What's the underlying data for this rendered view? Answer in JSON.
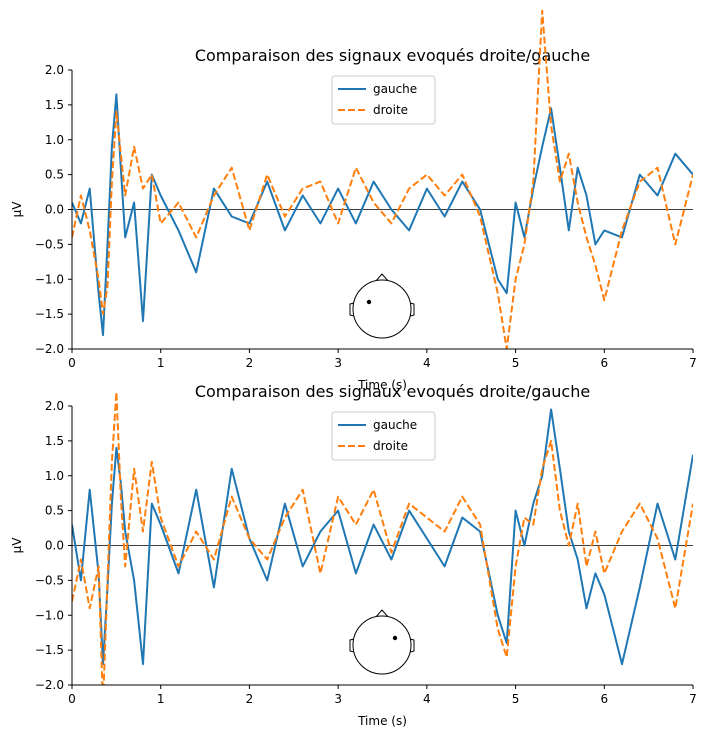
{
  "chart_data": [
    {
      "type": "line",
      "title": "Comparaison des signaux evoqués droite/gauche",
      "xlabel": "Time (s)",
      "ylabel": "µV",
      "xlim": [
        0,
        7
      ],
      "ylim": [
        -2.0,
        2.0
      ],
      "xticks": [
        "0",
        "1",
        "2",
        "3",
        "4",
        "5",
        "6",
        "7"
      ],
      "yticks": [
        "−2.0",
        "−1.5",
        "−1.0",
        "−0.5",
        "0.0",
        "0.5",
        "1.0",
        "1.5",
        "2.0"
      ],
      "legend": "top-center",
      "zero_line": true,
      "sensor_inset": {
        "sensor_side": "left"
      },
      "series": [
        {
          "name": "gauche",
          "color": "#1f77b4",
          "dash": "solid",
          "x": [
            0,
            0.1,
            0.2,
            0.3,
            0.35,
            0.4,
            0.45,
            0.5,
            0.55,
            0.6,
            0.7,
            0.8,
            0.9,
            1.0,
            1.2,
            1.4,
            1.6,
            1.8,
            2.0,
            2.2,
            2.4,
            2.6,
            2.8,
            3.0,
            3.2,
            3.4,
            3.6,
            3.8,
            4.0,
            4.2,
            4.4,
            4.6,
            4.8,
            4.9,
            5.0,
            5.1,
            5.2,
            5.3,
            5.4,
            5.5,
            5.6,
            5.7,
            5.8,
            5.9,
            6.0,
            6.2,
            6.4,
            6.6,
            6.8,
            7.0
          ],
          "y": [
            0.1,
            -0.2,
            0.3,
            -1.2,
            -1.8,
            -0.5,
            0.9,
            1.65,
            0.6,
            -0.4,
            0.1,
            -1.6,
            0.5,
            0.2,
            -0.3,
            -0.9,
            0.3,
            -0.1,
            -0.2,
            0.4,
            -0.3,
            0.2,
            -0.2,
            0.3,
            -0.2,
            0.4,
            0.0,
            -0.3,
            0.3,
            -0.1,
            0.4,
            0.0,
            -1.0,
            -1.2,
            0.1,
            -0.4,
            0.3,
            0.9,
            1.45,
            0.6,
            -0.3,
            0.6,
            0.2,
            -0.5,
            -0.3,
            -0.4,
            0.5,
            0.2,
            0.8,
            0.5
          ]
        },
        {
          "name": "droite",
          "color": "#ff7f0e",
          "dash": "dashed",
          "x": [
            0,
            0.1,
            0.2,
            0.3,
            0.35,
            0.4,
            0.45,
            0.5,
            0.55,
            0.6,
            0.7,
            0.8,
            0.9,
            1.0,
            1.2,
            1.4,
            1.6,
            1.8,
            2.0,
            2.2,
            2.4,
            2.6,
            2.8,
            3.0,
            3.2,
            3.4,
            3.6,
            3.8,
            4.0,
            4.2,
            4.4,
            4.6,
            4.8,
            4.9,
            5.0,
            5.1,
            5.2,
            5.3,
            5.4,
            5.5,
            5.6,
            5.7,
            5.8,
            5.9,
            6.0,
            6.2,
            6.4,
            6.6,
            6.8,
            7.0
          ],
          "y": [
            -0.4,
            0.2,
            -0.3,
            -1.0,
            -1.5,
            -1.1,
            0.4,
            1.4,
            0.8,
            0.2,
            0.9,
            0.3,
            0.5,
            -0.2,
            0.1,
            -0.4,
            0.2,
            0.6,
            -0.3,
            0.5,
            -0.1,
            0.3,
            0.4,
            -0.2,
            0.6,
            0.1,
            -0.2,
            0.3,
            0.5,
            0.2,
            0.5,
            -0.1,
            -1.2,
            -2.0,
            -1.0,
            -0.5,
            0.4,
            2.85,
            1.2,
            0.4,
            0.8,
            0.1,
            -0.4,
            -0.8,
            -1.3,
            -0.3,
            0.4,
            0.6,
            -0.5,
            0.5
          ]
        }
      ]
    },
    {
      "type": "line",
      "title": "Comparaison des signaux evoqués droite/gauche",
      "xlabel": "Time (s)",
      "ylabel": "µV",
      "xlim": [
        0,
        7
      ],
      "ylim": [
        -2.0,
        2.0
      ],
      "xticks": [
        "0",
        "1",
        "2",
        "3",
        "4",
        "5",
        "6",
        "7"
      ],
      "yticks": [
        "−2.0",
        "−1.5",
        "−1.0",
        "−0.5",
        "0.0",
        "0.5",
        "1.0",
        "1.5",
        "2.0"
      ],
      "legend": "top-center",
      "zero_line": true,
      "sensor_inset": {
        "sensor_side": "right"
      },
      "series": [
        {
          "name": "gauche",
          "color": "#1f77b4",
          "dash": "solid",
          "x": [
            0,
            0.1,
            0.2,
            0.3,
            0.35,
            0.4,
            0.45,
            0.5,
            0.55,
            0.6,
            0.7,
            0.8,
            0.9,
            1.0,
            1.2,
            1.4,
            1.6,
            1.8,
            2.0,
            2.2,
            2.4,
            2.6,
            2.8,
            3.0,
            3.2,
            3.4,
            3.6,
            3.8,
            4.0,
            4.2,
            4.4,
            4.6,
            4.8,
            4.9,
            5.0,
            5.1,
            5.2,
            5.3,
            5.4,
            5.5,
            5.6,
            5.7,
            5.8,
            5.9,
            6.0,
            6.2,
            6.4,
            6.6,
            6.8,
            7.0
          ],
          "y": [
            0.3,
            -0.5,
            0.8,
            -0.4,
            -1.7,
            -0.6,
            0.6,
            1.4,
            0.9,
            0.2,
            -0.5,
            -1.7,
            0.6,
            0.3,
            -0.4,
            0.8,
            -0.6,
            1.1,
            0.1,
            -0.5,
            0.6,
            -0.3,
            0.2,
            0.5,
            -0.4,
            0.3,
            -0.2,
            0.5,
            0.1,
            -0.3,
            0.4,
            0.2,
            -1.0,
            -1.4,
            0.5,
            0.0,
            0.6,
            1.0,
            1.95,
            1.1,
            0.2,
            -0.2,
            -0.9,
            -0.4,
            -0.7,
            -1.7,
            -0.6,
            0.6,
            -0.2,
            1.3
          ]
        },
        {
          "name": "droite",
          "color": "#ff7f0e",
          "dash": "dashed",
          "x": [
            0,
            0.1,
            0.2,
            0.3,
            0.35,
            0.4,
            0.45,
            0.5,
            0.55,
            0.6,
            0.7,
            0.8,
            0.9,
            1.0,
            1.2,
            1.4,
            1.6,
            1.8,
            2.0,
            2.2,
            2.4,
            2.6,
            2.8,
            3.0,
            3.2,
            3.4,
            3.6,
            3.8,
            4.0,
            4.2,
            4.4,
            4.6,
            4.8,
            4.9,
            5.0,
            5.1,
            5.2,
            5.3,
            5.4,
            5.5,
            5.6,
            5.7,
            5.8,
            5.9,
            6.0,
            6.2,
            6.4,
            6.6,
            6.8,
            7.0
          ],
          "y": [
            -0.8,
            -0.2,
            -0.9,
            -0.3,
            -2.3,
            -0.5,
            1.2,
            2.2,
            0.7,
            -0.3,
            1.1,
            0.2,
            1.2,
            0.4,
            -0.3,
            0.2,
            -0.2,
            0.7,
            0.1,
            -0.2,
            0.4,
            0.8,
            -0.4,
            0.7,
            0.3,
            0.8,
            -0.1,
            0.6,
            0.4,
            0.2,
            0.7,
            0.3,
            -1.2,
            -1.6,
            -0.3,
            0.4,
            0.3,
            1.1,
            1.5,
            0.5,
            0.0,
            0.6,
            -0.3,
            0.2,
            -0.4,
            0.2,
            0.6,
            0.1,
            -0.9,
            0.6
          ]
        }
      ]
    }
  ]
}
